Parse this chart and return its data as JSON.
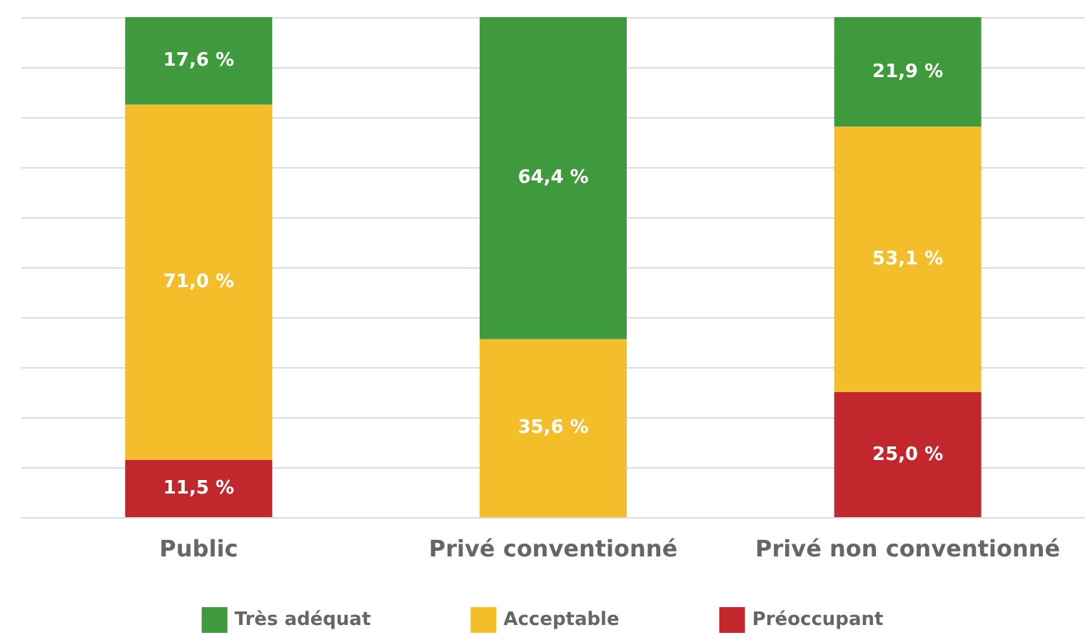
{
  "chart_data": {
    "type": "bar",
    "stacked": true,
    "categories": [
      "Public",
      "Privé conventionné",
      "Privé non conventionné"
    ],
    "series": [
      {
        "name": "Préoccupant",
        "color": "#c1272d",
        "values": [
          11.5,
          null,
          25.0
        ],
        "value_labels": [
          "11,5 %",
          null,
          "25,0 %"
        ]
      },
      {
        "name": "Acceptable",
        "color": "#f4bd2a",
        "values": [
          71.0,
          35.6,
          53.1
        ],
        "value_labels": [
          "71,0 %",
          "35,6 %",
          "53,1 %"
        ]
      },
      {
        "name": "Très adéquat",
        "color": "#3e9a3c",
        "values": [
          17.6,
          64.4,
          21.9
        ],
        "value_labels": [
          "17,6 %",
          "64,4 %",
          "21,9 %"
        ]
      }
    ],
    "ylim": [
      0,
      100
    ],
    "yticks": [
      {
        "value": 0,
        "label": null
      },
      {
        "value": 10,
        "label": null
      },
      {
        "value": 20,
        "label": null
      },
      {
        "value": 30,
        "label": null
      },
      {
        "value": 40,
        "label": null
      },
      {
        "value": 50,
        "label": null
      },
      {
        "value": 60,
        "label": null
      },
      {
        "value": 70,
        "label": null
      },
      {
        "value": 80,
        "label": null
      },
      {
        "value": 90,
        "label": null
      },
      {
        "value": 100,
        "label": null
      }
    ],
    "tick_labels": "x",
    "grid": "y",
    "legend": "bottom"
  }
}
